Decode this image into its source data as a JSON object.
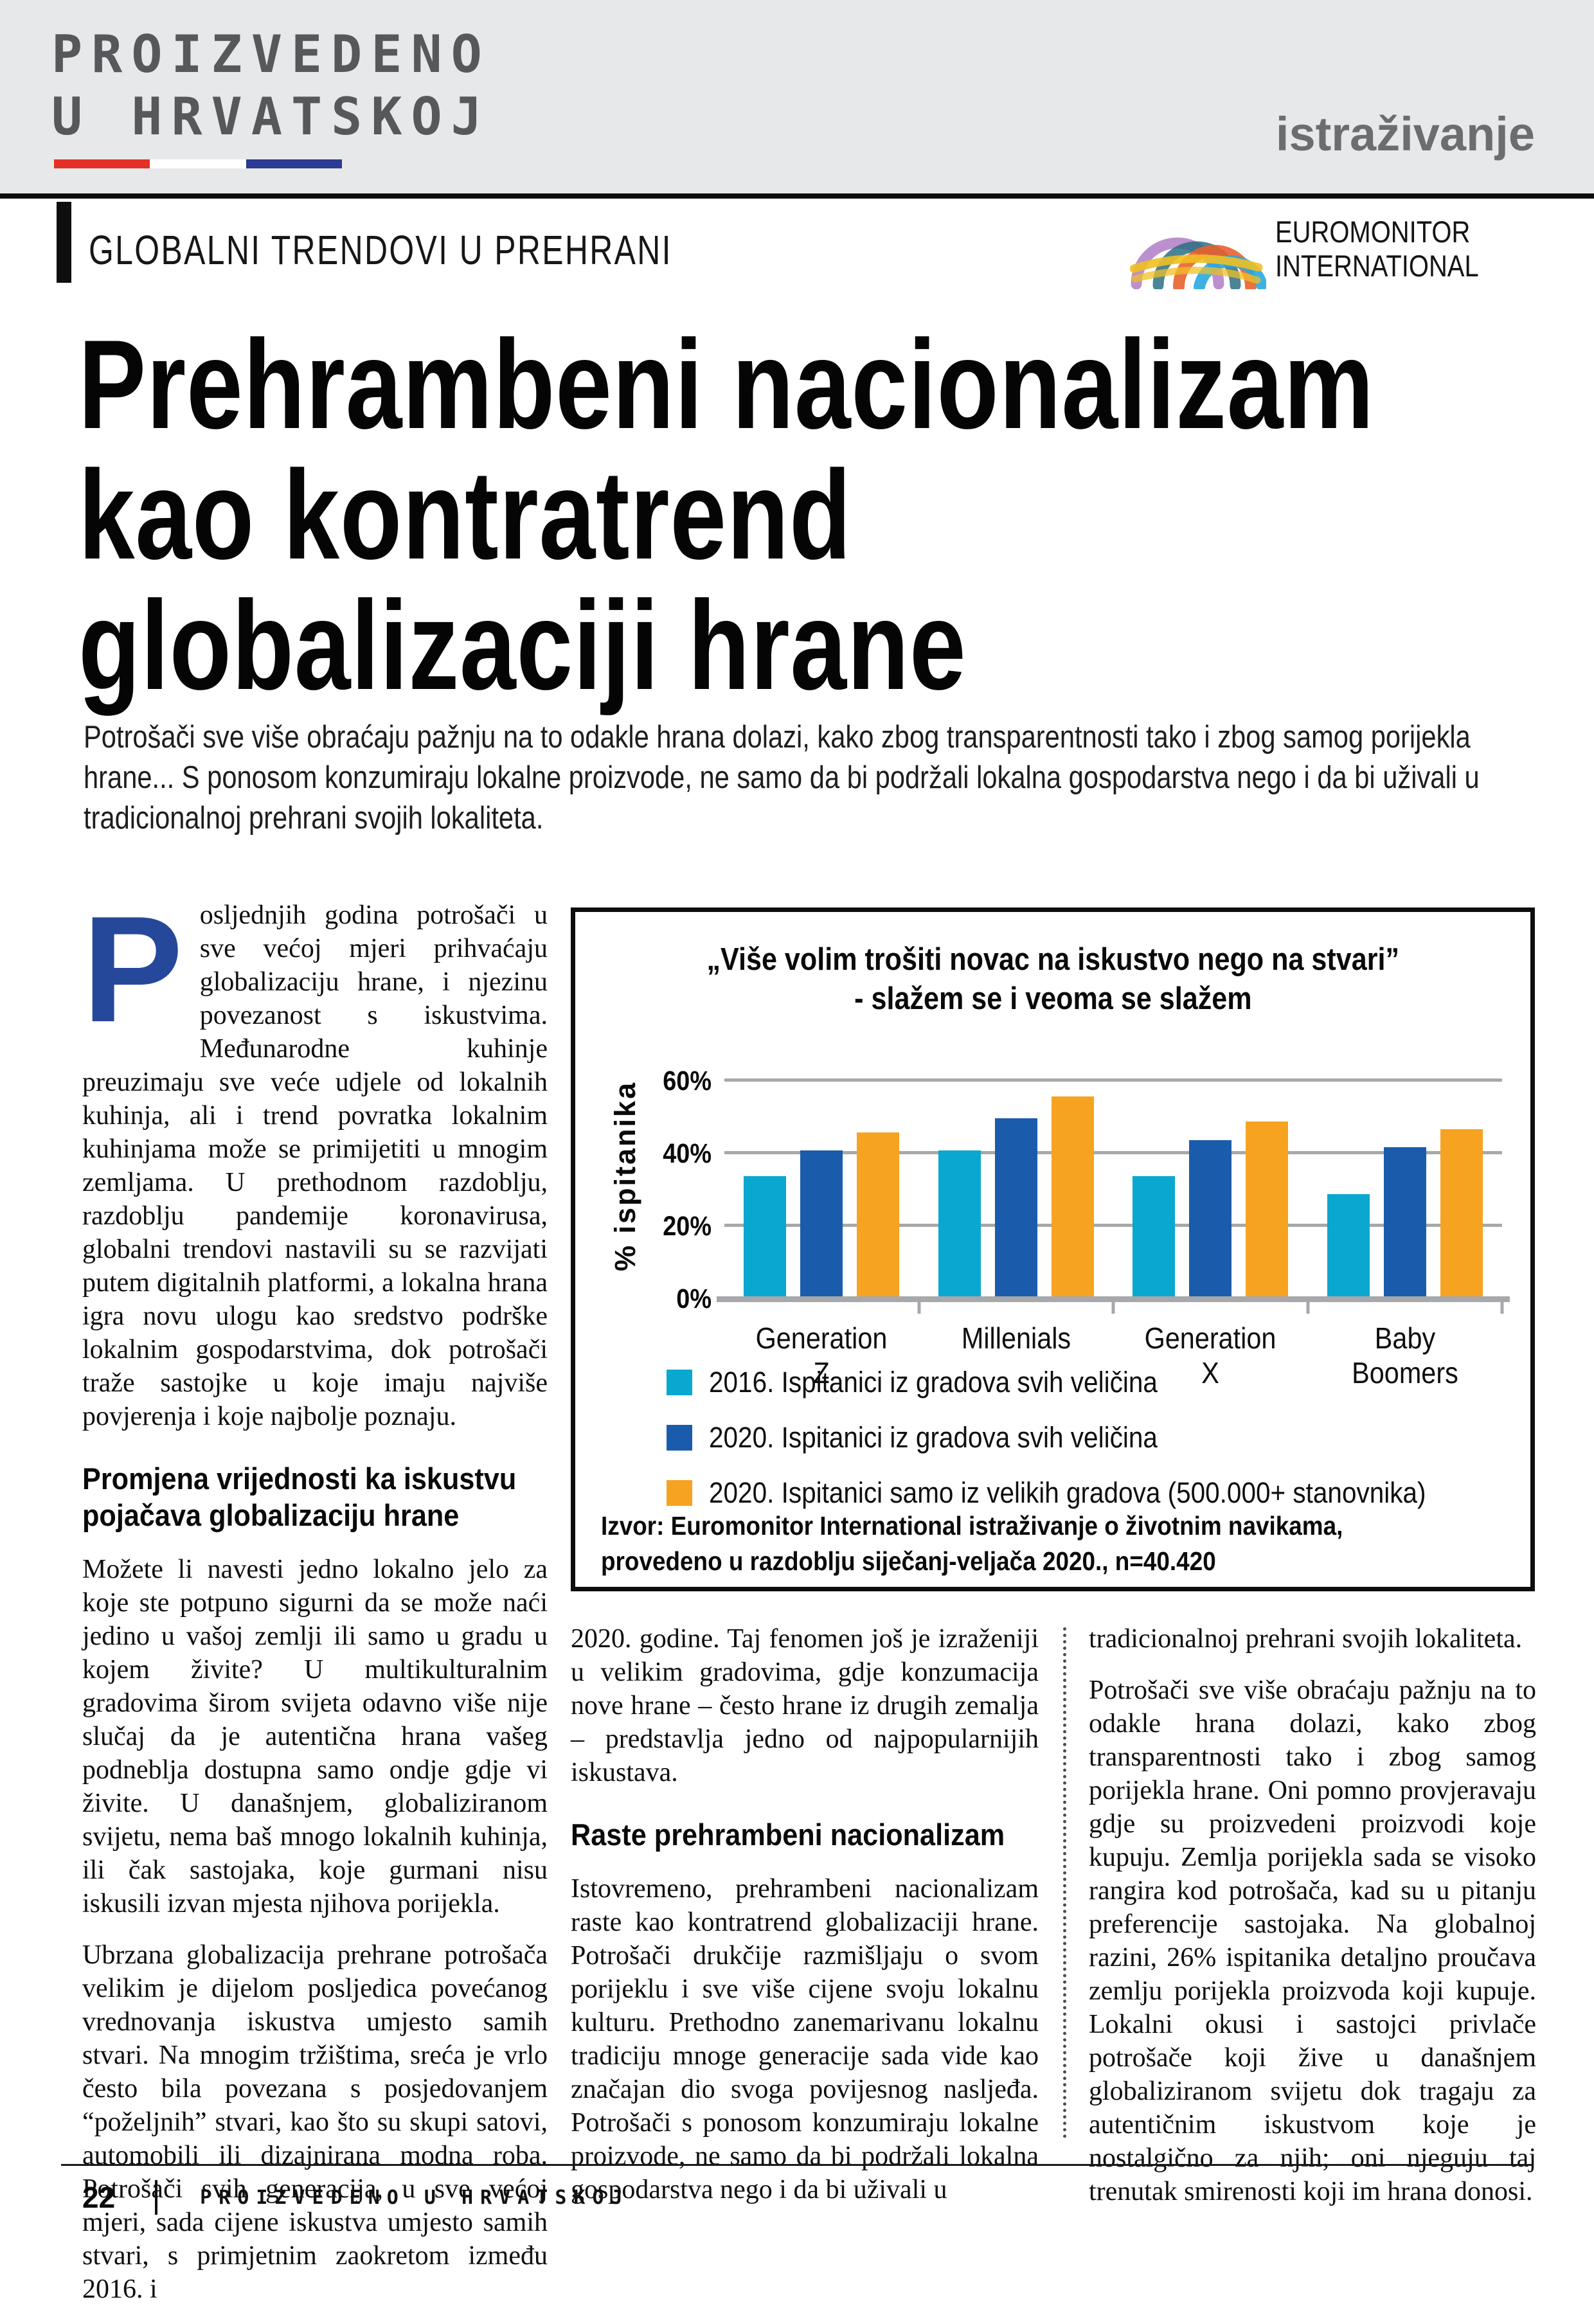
{
  "masthead": {
    "logo_line1": "PROIZVEDENO",
    "logo_line2": "U HRVATSKOJ",
    "flag_colors": [
      "#e53028",
      "#ffffff",
      "#2b3a92"
    ],
    "section_tag": "istraživanje"
  },
  "kicker": "GLOBALNI TRENDOVI U PREHRANI",
  "partner_logo": {
    "line1": "EUROMONITOR",
    "line2": "INTERNATIONAL"
  },
  "headline": {
    "line1": "Prehrambeni nacionalizam",
    "line2": "kao kontratrend",
    "line3": "globalizaciji hrane"
  },
  "lead": "Potrošači sve više obraćaju pažnju na to odakle hrana dolazi, kako zbog transparentnosti tako i zbog samog porijekla hrane... S ponosom konzumiraju lokalne proizvode, ne samo da bi podržali lokalna gospodarstva nego i da bi uživali u tradicionalnoj prehrani svojih lokaliteta.",
  "article": {
    "col1": {
      "dropcap": "P",
      "p1": "osljednjih godina potrošači u sve većoj mjeri prihvaćaju globalizaciju hrane, i njezinu povezanost s iskustvima. Međunarodne kuhinje preuzimaju sve veće udjele od lokalnih kuhinja, ali i trend povratka lokalnim kuhinjama može se primijetiti u mnogim zemljama. U prethodnom razdoblju, razdoblju pandemije koronavirusa, globalni trendovi nastavili su se razvijati putem digitalnih platformi, a lokalna hrana igra novu ulogu kao sredstvo podrške lokalnim gospodarstvima, dok potrošači traže sastojke u koje imaju najviše povjerenja i koje najbolje poznaju.",
      "h1": "Promjena vrijednosti ka iskustvu pojačava globalizaciju hrane",
      "p2": "Možete li navesti jedno lokalno jelo za koje ste potpuno sigurni da se može naći jedino u vašoj zemlji ili samo u gradu u kojem živite? U multikulturalnim gradovima širom svijeta odavno više nije slučaj da je autentična hrana vašeg podneblja dostupna samo ondje gdje vi živite. U današnjem, globaliziranom svijetu, nema baš mnogo lokalnih kuhinja, ili čak sastojaka, koje gurmani nisu iskusili izvan mjesta njihova porijekla.",
      "p3": "Ubrzana globalizacija prehrane potrošača velikim je dijelom posljedica povećanog vrednovanja iskustva umjesto samih stvari. Na mnogim tržištima, sreća je vrlo često bila povezana s posjedovanjem “poželjnih” stvari, kao što su skupi satovi, automobili ili dizajnirana modna roba. Potrošači svih generacija, u sve većoj mjeri, sada cijene iskustva umjesto samih stvari, s primjetnim zaokretom između 2016. i"
    },
    "col2": {
      "p1": "2020. godine. Taj fenomen još je izraženiji u velikim gradovima, gdje konzumacija nove hrane – često hrane iz drugih zemalja – predstavlja jedno od najpopularnijih iskustava.",
      "h1": "Raste prehrambeni nacionalizam",
      "p2": "Istovremeno, prehrambeni nacionalizam raste kao kontratrend globalizaciji hrane. Potrošači drukčije razmišljaju o svom porijeklu i sve više cijene svoju lokalnu kulturu. Prethodno zanemarivanu lokalnu tradiciju mnoge generacije sada vide kao značajan dio svoga povijesnog nasljeđa. Potrošači s ponosom konzumiraju lokalne proizvode, ne samo da bi podržali lokalna gospodarstva nego i da bi uživali u"
    },
    "col3": {
      "p1": "tradicionalnoj prehrani svojih lokaliteta.",
      "p2": "Potrošači sve više obraćaju pažnju na to odakle hrana dolazi, kako zbog transparentnosti tako i zbog samog porijekla hrane. Oni pomno provjeravaju gdje su proizvedeni proizvodi koje kupuju. Zemlja porijekla sada se visoko rangira kod potrošača, kad su u pitanju preferencije sastojaka. Na globalnoj razini, 26% ispitanika detaljno proučava zemlju porijekla proizvoda koji kupuje. Lokalni okusi i sastojci privlače potrošače koji žive u današnjem globaliziranom svijetu dok tragaju za autentičnim iskustvom koje je nostalgično za njih; oni njeguju taj trenutak smirenosti koji im hrana donosi."
    }
  },
  "chart_data": {
    "type": "bar",
    "title_line1": "„Više volim trošiti novac na iskustvo nego na stvari”",
    "title_line2": "- slažem se i veoma se slažem",
    "categories": [
      "Generation Z",
      "Millenials",
      "Generation X",
      "Baby Boomers"
    ],
    "series": [
      {
        "name": "2016. Ispitanici iz gradova svih veličina",
        "color": "#0aa7d0",
        "values": [
          34,
          41,
          34,
          29
        ]
      },
      {
        "name": "2020. Ispitanici iz gradova svih veličina",
        "color": "#1a5cab",
        "values": [
          41,
          50,
          44,
          42
        ]
      },
      {
        "name": "2020. Ispitanici samo iz velikih gradova (500.000+ stanovnika)",
        "color": "#f6a321",
        "values": [
          46,
          56,
          49,
          47
        ]
      }
    ],
    "ylabel": "% ispitanika",
    "yticks": [
      "0%",
      "20%",
      "40%",
      "60%"
    ],
    "ylim": [
      0,
      68
    ],
    "grid": true,
    "legend_position": "bottom",
    "source_line1": "Izvor: Euromonitor International istraživanje o životnim navikama,",
    "source_line2": "provedeno u razdoblju siječanj-veljača 2020., n=40.420"
  },
  "footer": {
    "page_number": "22",
    "magazine": "PROIZVEDENO U HRVATSKOJ"
  }
}
